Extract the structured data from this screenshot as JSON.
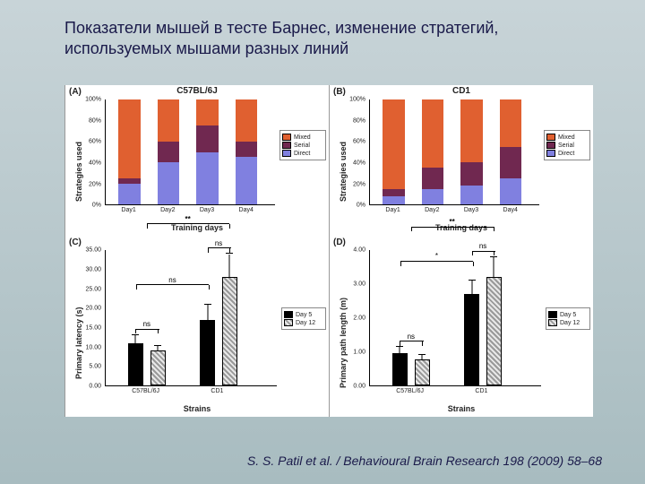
{
  "title": "Показатели мышей в тесте Барнес, изменение стратегий, используемых мышами разных линий",
  "citation": "S. S. Patil et al. / Behavioural Brain Research 198 (2009) 58–68",
  "colors": {
    "mixed": "#e06030",
    "serial": "#702850",
    "direct": "#8080e0",
    "day5": "#000000",
    "day12_pattern_light": "#e8e8e8",
    "day12_pattern_dark": "#999999",
    "grid": "#999999",
    "background": "#ffffff"
  },
  "legend_strategies": {
    "mixed": "Mixed",
    "serial": "Serial",
    "direct": "Direct"
  },
  "legend_days": {
    "day5": "Day 5",
    "day12": "Day 12"
  },
  "axis_labels": {
    "strategies_y": "Strategies used",
    "training_x": "Training days",
    "latency_y": "Primary latency (s)",
    "path_y": "Primary path length (m)",
    "strains_x": "Strains"
  },
  "panelA": {
    "letter": "(A)",
    "title": "C57BL/6J",
    "ymax": 100,
    "ytick_step": 20,
    "xcats": [
      "Day1",
      "Day2",
      "Day3",
      "Day4"
    ],
    "bars": [
      {
        "direct": 20,
        "serial": 5,
        "mixed": 75
      },
      {
        "direct": 40,
        "serial": 20,
        "mixed": 40
      },
      {
        "direct": 50,
        "serial": 25,
        "mixed": 25
      },
      {
        "direct": 45,
        "serial": 15,
        "mixed": 40
      }
    ]
  },
  "panelB": {
    "letter": "(B)",
    "title": "CD1",
    "ymax": 100,
    "ytick_step": 20,
    "xcats": [
      "Day1",
      "Day2",
      "Day3",
      "Day4"
    ],
    "bars": [
      {
        "direct": 8,
        "serial": 7,
        "mixed": 85
      },
      {
        "direct": 15,
        "serial": 20,
        "mixed": 65
      },
      {
        "direct": 18,
        "serial": 22,
        "mixed": 60
      },
      {
        "direct": 25,
        "serial": 30,
        "mixed": 45
      }
    ]
  },
  "panelC": {
    "letter": "(C)",
    "ymax": 35,
    "yticks": [
      0,
      5,
      10,
      15,
      20,
      25,
      30,
      35
    ],
    "ytick_labels": [
      "0.00",
      "5.00",
      "10.00",
      "15.00",
      "20.00",
      "25.00",
      "30.00",
      "35.00"
    ],
    "xcats": [
      "C57BL/6J",
      "CD1"
    ],
    "bars": [
      {
        "day5": 11,
        "day5_err": 2,
        "day12": 9,
        "day12_err": 1.2,
        "sig1": "ns"
      },
      {
        "day5": 17,
        "day5_err": 4,
        "day12": 28,
        "day12_err": 6,
        "sig1": "ns"
      }
    ],
    "sig_between_day5": "ns",
    "sig_overall": "**"
  },
  "panelD": {
    "letter": "(D)",
    "ymax": 4,
    "yticks": [
      0,
      1,
      2,
      3,
      4
    ],
    "ytick_labels": [
      "0.00",
      "1.00",
      "2.00",
      "3.00",
      "4.00"
    ],
    "xcats": [
      "C57BL/6J",
      "CD1"
    ],
    "bars": [
      {
        "day5": 0.95,
        "day5_err": 0.18,
        "day12": 0.78,
        "day12_err": 0.12,
        "sig1": "ns"
      },
      {
        "day5": 2.7,
        "day5_err": 0.4,
        "day12": 3.2,
        "day12_err": 0.6,
        "sig1": "ns"
      }
    ],
    "sig_between_day5": "*",
    "sig_overall": "**"
  }
}
